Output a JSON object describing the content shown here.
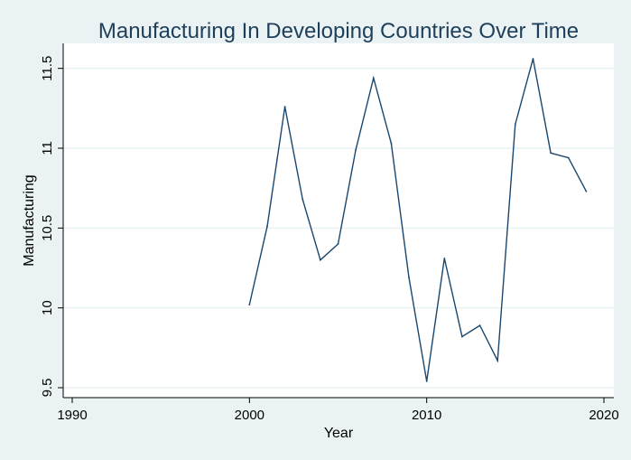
{
  "chart_data": {
    "type": "line",
    "title": "Manufacturing In Developing Countries Over Time",
    "xlabel": "Year",
    "ylabel": "Manufacturing",
    "xlim": [
      1990,
      2020
    ],
    "ylim": [
      9.5,
      11.6
    ],
    "xticks": [
      1990,
      2000,
      2010,
      2020
    ],
    "yticks": [
      9.5,
      10,
      10.5,
      11,
      11.5
    ],
    "xtick_labels": [
      "1990",
      "2000",
      "2010",
      "2020"
    ],
    "ytick_labels": [
      "9.5",
      "10",
      "10.5",
      "11",
      "11.5"
    ],
    "grid": true,
    "series": [
      {
        "x": [
          2000,
          2001,
          2002,
          2003,
          2004,
          2005,
          2006,
          2007,
          2008,
          2009,
          2010,
          2011,
          2012,
          2013,
          2014,
          2015,
          2016,
          2017,
          2018,
          2019
        ],
        "values": [
          10.02,
          10.51,
          11.26,
          10.68,
          10.3,
          10.4,
          10.99,
          11.44,
          11.03,
          10.19,
          9.54,
          10.31,
          9.82,
          9.89,
          9.67,
          11.15,
          11.56,
          10.97,
          10.94,
          10.73
        ],
        "color": "#1a476f"
      }
    ]
  },
  "colors": {
    "background": "#eaf2f3",
    "plot_background": "#ffffff",
    "title": "#1e3f5a",
    "line": "#1a476f"
  }
}
